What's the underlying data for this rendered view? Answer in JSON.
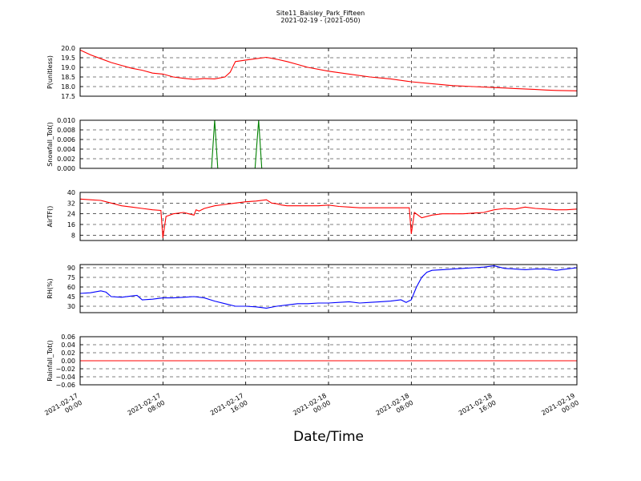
{
  "figure": {
    "title_line1": "Site11_Baisley_Park_Fifteen",
    "title_line2": "2021-02-19 - (2021-050)",
    "xlabel": "Date/Time"
  },
  "chart_data": [
    {
      "type": "line",
      "ylabel": "P(unitless)",
      "ylim": [
        17.5,
        20.0
      ],
      "yticks": [
        "17.5",
        "18.0",
        "18.5",
        "19.0",
        "19.5",
        "20.0"
      ],
      "xlim_hours": [
        0,
        48
      ],
      "x_tick_labels": [
        [
          "2021-02-17",
          "00:00"
        ],
        [
          "2021-02-17",
          "08:00"
        ],
        [
          "2021-02-17",
          "16:00"
        ],
        [
          "2021-02-18",
          "00:00"
        ],
        [
          "2021-02-18",
          "08:00"
        ],
        [
          "2021-02-18",
          "16:00"
        ],
        [
          "2021-02-19",
          "00:00"
        ]
      ],
      "grid": true,
      "series": [
        {
          "color": "#ff0000",
          "x": [
            0,
            1,
            2,
            3,
            4,
            5,
            6,
            7,
            8,
            9,
            10,
            11,
            12,
            13,
            14,
            14.5,
            15,
            16,
            17,
            18,
            19,
            20,
            21,
            22,
            24,
            26,
            28,
            30,
            32,
            34,
            36,
            38,
            40,
            42,
            44,
            45,
            46,
            48
          ],
          "y": [
            19.9,
            19.65,
            19.45,
            19.25,
            19.1,
            18.95,
            18.85,
            18.7,
            18.65,
            18.5,
            18.43,
            18.38,
            18.42,
            18.4,
            18.5,
            18.75,
            19.3,
            19.38,
            19.45,
            19.52,
            19.42,
            19.3,
            19.15,
            19.0,
            18.8,
            18.65,
            18.5,
            18.4,
            18.25,
            18.15,
            18.05,
            18.0,
            17.95,
            17.9,
            17.85,
            17.82,
            17.8,
            17.78
          ]
        }
      ]
    },
    {
      "type": "line",
      "ylabel": "Snowfall_Tot()",
      "ylim": [
        0.0,
        0.01
      ],
      "yticks": [
        "0.000",
        "0.002",
        "0.004",
        "0.006",
        "0.008",
        "0.010"
      ],
      "xlim_hours": [
        0,
        48
      ],
      "grid": true,
      "series": [
        {
          "color": "#008000",
          "x": [
            0,
            12.7,
            13.0,
            13.3,
            16.9,
            17.25,
            17.55,
            48
          ],
          "y": [
            0,
            0,
            0.01,
            0,
            0,
            0.01,
            0,
            0
          ]
        }
      ]
    },
    {
      "type": "line",
      "ylabel": "AirTF()",
      "ylim": [
        4,
        40
      ],
      "yticks": [
        "8",
        "16",
        "24",
        "32",
        "40"
      ],
      "xlim_hours": [
        0,
        48
      ],
      "grid": true,
      "series": [
        {
          "color": "#ff0000",
          "x": [
            0,
            1,
            2,
            3,
            4,
            5,
            6,
            7,
            7.8,
            8.0,
            8.3,
            9,
            10,
            10.5,
            11,
            11.2,
            11.5,
            12,
            13,
            14,
            15,
            16,
            17,
            18,
            18.5,
            19,
            19.5,
            20,
            21,
            22,
            23,
            24,
            25,
            26,
            27,
            28,
            29,
            30,
            31,
            31.8,
            32.0,
            32.3,
            33,
            34,
            35,
            36,
            37,
            38,
            39,
            40,
            41,
            42,
            43,
            44,
            45,
            46,
            47,
            48
          ],
          "y": [
            35,
            34.5,
            34,
            32,
            30,
            29,
            28,
            27,
            26.5,
            6,
            22,
            24,
            25,
            24,
            23,
            27,
            26,
            28,
            30,
            31,
            32,
            33,
            33.5,
            34.5,
            32,
            31.5,
            30.5,
            30,
            30,
            30,
            30,
            30.5,
            29.5,
            29,
            28.5,
            28.5,
            28.5,
            28.5,
            28.5,
            28.5,
            9,
            25,
            21,
            23,
            24,
            24,
            24,
            24.5,
            25,
            27,
            28,
            27.5,
            29,
            28,
            27.5,
            27,
            27,
            27.5
          ]
        }
      ]
    },
    {
      "type": "line",
      "ylabel": "RH(%)",
      "ylim": [
        20,
        95
      ],
      "yticks": [
        "30",
        "45",
        "60",
        "75",
        "90"
      ],
      "xlim_hours": [
        0,
        48
      ],
      "grid": true,
      "series": [
        {
          "color": "#0000ff",
          "x": [
            0,
            1,
            2,
            2.5,
            3,
            4,
            5,
            5.5,
            6,
            7,
            8,
            9,
            10,
            11,
            12,
            13,
            14,
            15,
            16,
            17,
            18,
            19,
            20,
            21,
            22,
            23,
            24,
            25,
            26,
            27,
            28,
            29,
            30,
            31,
            31.5,
            32,
            32.5,
            33,
            33.5,
            34,
            35,
            36,
            37,
            38,
            39,
            40,
            41,
            42,
            43,
            44,
            45,
            46,
            47,
            48
          ],
          "y": [
            50,
            51,
            54,
            52,
            45,
            44,
            46,
            47,
            40,
            41,
            43,
            43,
            44,
            45,
            43,
            38,
            34,
            30,
            30,
            29,
            27,
            30,
            32,
            34,
            34,
            35,
            35,
            36,
            37,
            35,
            36,
            37,
            38,
            40,
            36,
            40,
            60,
            75,
            83,
            86,
            87,
            88,
            89,
            90,
            91,
            93,
            89,
            88,
            87,
            88,
            88,
            86,
            88,
            90
          ]
        }
      ]
    },
    {
      "type": "line",
      "ylabel": "Rainfall_Tot()",
      "ylim": [
        -0.06,
        0.06
      ],
      "yticks": [
        "−0.06",
        "−0.04",
        "−0.02",
        "0.00",
        "0.02",
        "0.04",
        "0.06"
      ],
      "xlim_hours": [
        0,
        48
      ],
      "grid": true,
      "series": [
        {
          "color": "#ff0000",
          "x": [
            0,
            48
          ],
          "y": [
            0,
            0
          ]
        }
      ]
    }
  ]
}
